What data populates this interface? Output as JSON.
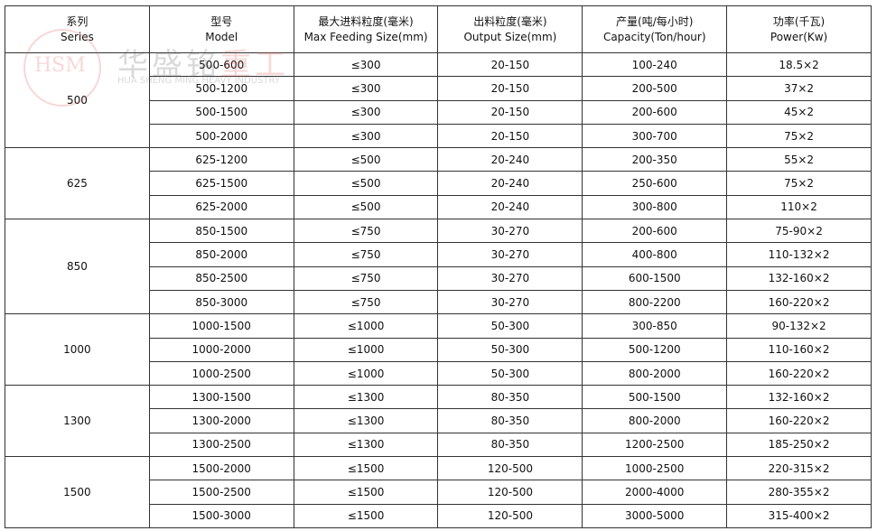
{
  "headers": [
    {
      "cn": "系列",
      "en": "Series"
    },
    {
      "cn": "型号",
      "en": "Model"
    },
    {
      "cn": "最大进料粒度(毫米)",
      "en": "Max Feeding Size(mm)"
    },
    {
      "cn": "出料粒度(毫米)",
      "en": "Output Size(mm)"
    },
    {
      "cn": "产量(吨/每小时)",
      "en": "Capacity(Ton/hour)"
    },
    {
      "cn": "功率(千瓦)",
      "en": "Power(Kw)"
    }
  ],
  "watermark": {
    "logo": "HSM",
    "cn_black": "华盛铭",
    "cn_red": "重工",
    "en": "HUA SHENG MING HEAVY INDUSTRY",
    "accent": "#d9534f"
  },
  "groups": [
    {
      "series": "500",
      "rows": [
        [
          "500-600",
          "≤300",
          "20-150",
          "100-240",
          "18.5×2"
        ],
        [
          "500-1200",
          "≤300",
          "20-150",
          "200-500",
          "37×2"
        ],
        [
          "500-1500",
          "≤300",
          "20-150",
          "200-600",
          "45×2"
        ],
        [
          "500-2000",
          "≤300",
          "20-150",
          "300-700",
          "75×2"
        ]
      ]
    },
    {
      "series": "625",
      "rows": [
        [
          "625-1200",
          "≤500",
          "20-240",
          "200-350",
          "55×2"
        ],
        [
          "625-1500",
          "≤500",
          "20-240",
          "250-600",
          "75×2"
        ],
        [
          "625-2000",
          "≤500",
          "20-240",
          "300-800",
          "110×2"
        ]
      ]
    },
    {
      "series": "850",
      "rows": [
        [
          "850-1500",
          "≤750",
          "30-270",
          "200-600",
          "75-90×2"
        ],
        [
          "850-2000",
          "≤750",
          "30-270",
          "400-800",
          "110-132×2"
        ],
        [
          "850-2500",
          "≤750",
          "30-270",
          "600-1500",
          "132-160×2"
        ],
        [
          "850-3000",
          "≤750",
          "30-270",
          "800-2200",
          "160-220×2"
        ]
      ]
    },
    {
      "series": "1000",
      "rows": [
        [
          "1000-1500",
          "≤1000",
          "50-300",
          "300-850",
          "90-132×2"
        ],
        [
          "1000-2000",
          "≤1000",
          "50-300",
          "500-1200",
          "110-160×2"
        ],
        [
          "1000-2500",
          "≤1000",
          "50-300",
          "800-2000",
          "160-220×2"
        ]
      ]
    },
    {
      "series": "1300",
      "rows": [
        [
          "1300-1500",
          "≤1300",
          "80-350",
          "500-1500",
          "132-160×2"
        ],
        [
          "1300-2000",
          "≤1300",
          "80-350",
          "800-2000",
          "160-220×2"
        ],
        [
          "1300-2500",
          "≤1300",
          "80-350",
          "1200-2500",
          "185-250×2"
        ]
      ]
    },
    {
      "series": "1500",
      "rows": [
        [
          "1500-2000",
          "≤1500",
          "120-500",
          "1000-2500",
          "220-315×2"
        ],
        [
          "1500-2500",
          "≤1500",
          "120-500",
          "2000-4000",
          "280-355×2"
        ],
        [
          "1500-3000",
          "≤1500",
          "120-500",
          "3000-5000",
          "315-400×2"
        ]
      ]
    }
  ]
}
